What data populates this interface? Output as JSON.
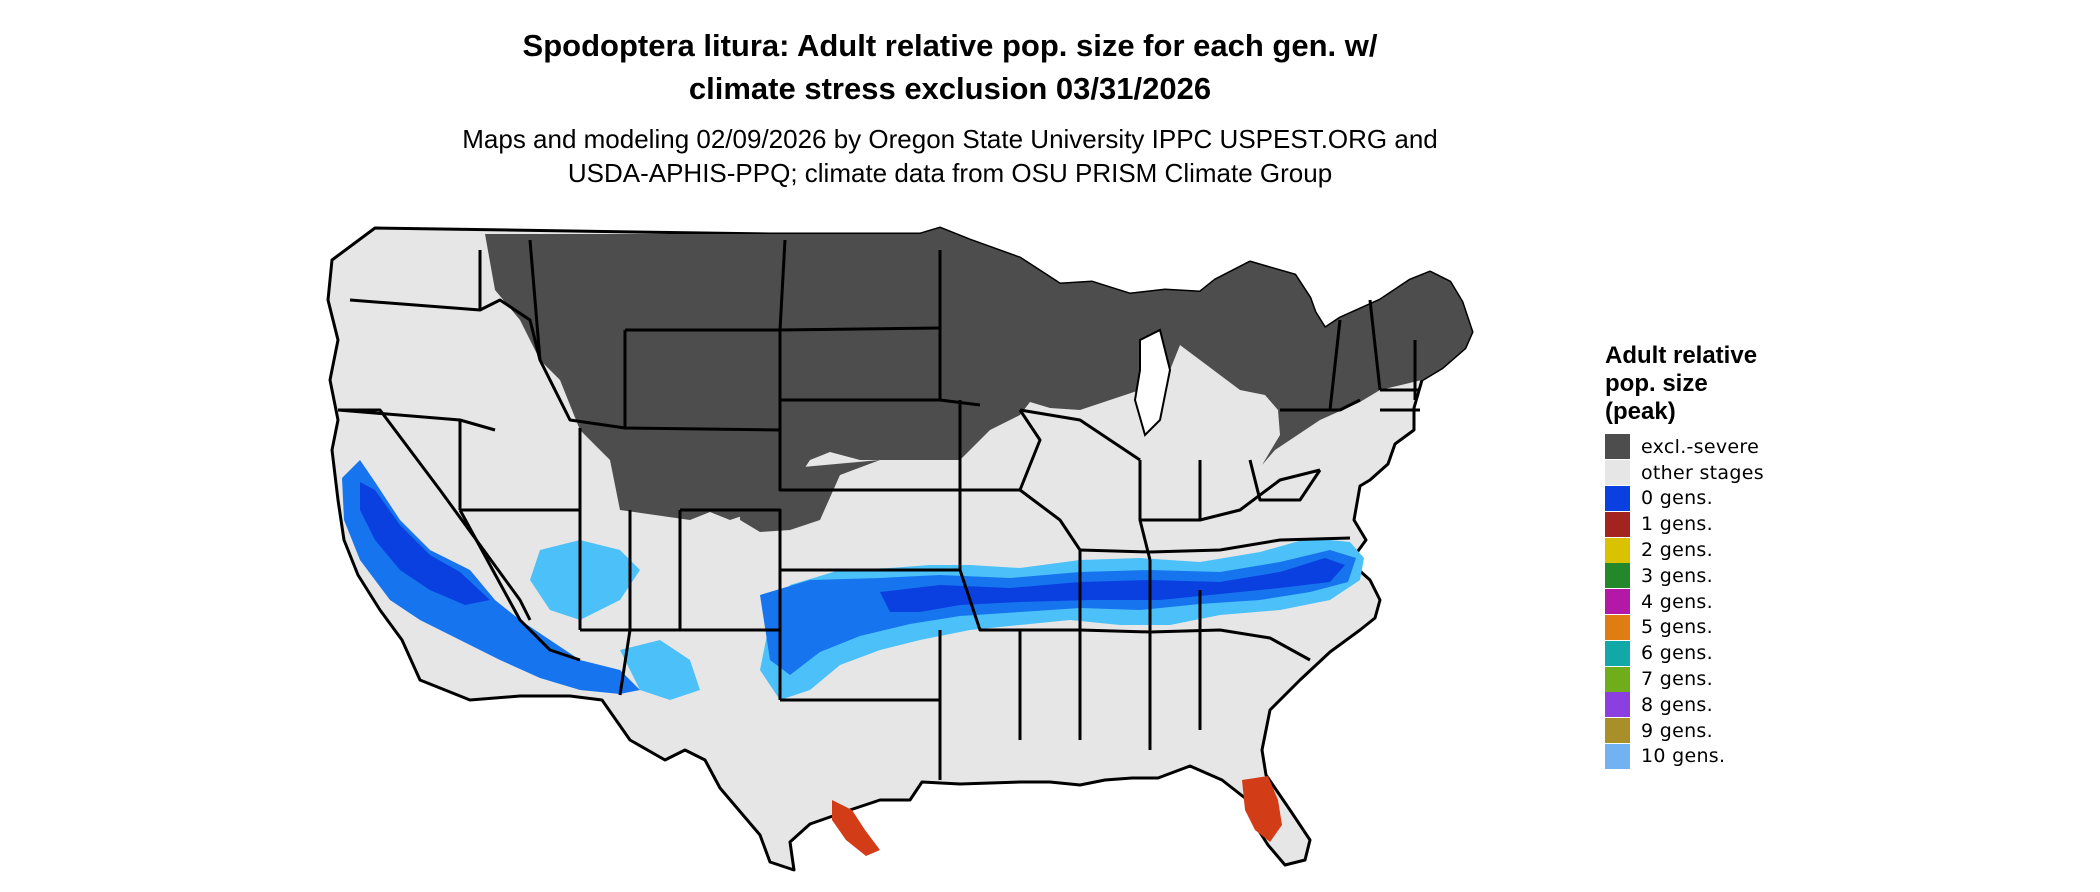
{
  "title": {
    "line1": "Spodoptera litura: Adult relative pop. size for each gen. w/",
    "line2": "climate stress exclusion 03/31/2026"
  },
  "subtitle": {
    "line1": "Maps and modeling 02/09/2026 by Oregon State University IPPC USPEST.ORG and",
    "line2": "USDA-APHIS-PPQ; climate data from OSU PRISM Climate Group"
  },
  "legend": {
    "title_lines": [
      "Adult relative",
      "pop. size",
      "(peak)"
    ],
    "items": [
      {
        "label": "excl.-severe",
        "color": "#4d4d4d"
      },
      {
        "label": "other stages",
        "color": "#e6e6e6"
      },
      {
        "label": "0 gens.",
        "color": "#0a3fe0"
      },
      {
        "label": "1 gens.",
        "color": "#a3241f"
      },
      {
        "label": "2 gens.",
        "color": "#d9c300"
      },
      {
        "label": "3 gens.",
        "color": "#22882a"
      },
      {
        "label": "4 gens.",
        "color": "#b318a6"
      },
      {
        "label": "5 gens.",
        "color": "#e07d12"
      },
      {
        "label": "6 gens.",
        "color": "#12a8a8"
      },
      {
        "label": "7 gens.",
        "color": "#6fad1a"
      },
      {
        "label": "8 gens.",
        "color": "#8b3fe0"
      },
      {
        "label": "9 gens.",
        "color": "#a88f2a"
      },
      {
        "label": "10 gens.",
        "color": "#72b1f2"
      }
    ]
  },
  "map": {
    "colors": {
      "background": "#e6e6e6",
      "excluded": "#4d4d4d",
      "blue_dark": "#0a3fe0",
      "blue_mid": "#1675ee",
      "blue_light": "#4cc0f8",
      "red": "#d23c17",
      "border": "#000000"
    }
  }
}
